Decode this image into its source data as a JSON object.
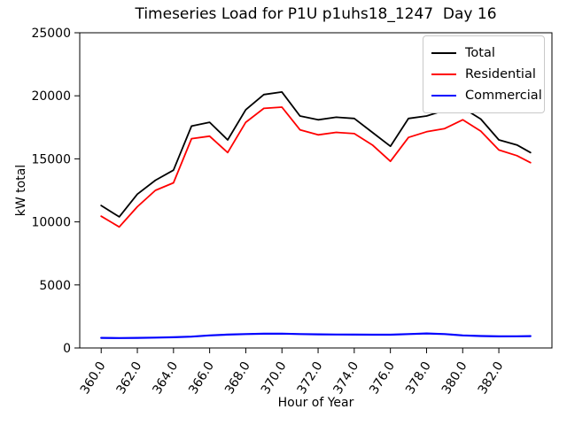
{
  "chart_data": {
    "type": "line",
    "title": "Timeseries Load for P1U p1uhs18_1247  Day 16",
    "xlabel": "Hour of Year",
    "ylabel": "kW total",
    "xlim": [
      358.8125,
      384.9375
    ],
    "ylim": [
      0,
      25000
    ],
    "grid": false,
    "legend_position": "upper right",
    "xticks": [
      360,
      362,
      364,
      366,
      368,
      370,
      372,
      374,
      376,
      378,
      380,
      382
    ],
    "xtick_labels": [
      "360.0",
      "362.0",
      "364.0",
      "366.0",
      "368.0",
      "370.0",
      "372.0",
      "374.0",
      "376.0",
      "378.0",
      "380.0",
      "382.0"
    ],
    "xtick_rotation_deg": 58,
    "yticks": [
      0,
      5000,
      10000,
      15000,
      20000,
      25000
    ],
    "ytick_labels": [
      "0",
      "5000",
      "10000",
      "15000",
      "20000",
      "25000"
    ],
    "x": [
      360,
      361,
      362,
      363,
      364,
      365,
      366,
      367,
      368,
      369,
      370,
      371,
      372,
      373,
      374,
      375,
      376,
      377,
      378,
      379,
      380,
      381,
      382,
      383,
      383.75
    ],
    "series": [
      {
        "name": "Total",
        "color": "#000000",
        "values": [
          11300,
          10400,
          12200,
          13300,
          14100,
          17600,
          17900,
          16500,
          18900,
          20100,
          20300,
          18400,
          18100,
          18300,
          18200,
          17100,
          16000,
          18200,
          18400,
          18850,
          19050,
          18150,
          16500,
          16100,
          15500
        ]
      },
      {
        "name": "Residential",
        "color": "#ff0000",
        "values": [
          10450,
          9600,
          11200,
          12500,
          13100,
          16600,
          16800,
          15500,
          17900,
          19000,
          19100,
          17300,
          16900,
          17100,
          17000,
          16100,
          14800,
          16700,
          17150,
          17400,
          18100,
          17200,
          15700,
          15250,
          14700
        ]
      },
      {
        "name": "Commercial",
        "color": "#0000ff",
        "values": [
          800,
          790,
          800,
          820,
          850,
          900,
          1000,
          1060,
          1100,
          1130,
          1140,
          1100,
          1080,
          1070,
          1060,
          1050,
          1050,
          1100,
          1150,
          1100,
          1000,
          950,
          920,
          930,
          940
        ]
      }
    ]
  }
}
